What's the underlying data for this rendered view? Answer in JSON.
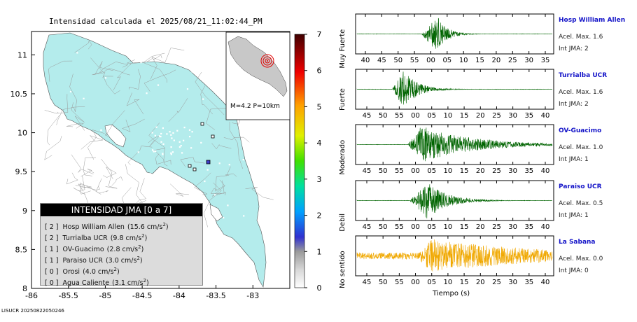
{
  "title": "Intensidad calculada el 2025/08/21_11:02:44_PM",
  "footer": "LISUCR 20250822050246",
  "map": {
    "x_ticks": [
      "-86",
      "-85.5",
      "-85",
      "-84.5",
      "-84",
      "-83.5",
      "-83"
    ],
    "y_ticks": [
      "11",
      "10.5",
      "10",
      "9.5",
      "9",
      "8.5",
      "8"
    ],
    "xlim": [
      -86,
      -82.5
    ],
    "ylim": [
      8,
      11.3
    ],
    "land_color": "#b4ecec",
    "inset_label": "M=4.2 P=10km"
  },
  "legend": {
    "title": "INTENSIDAD JMA [0 a 7]",
    "rows": [
      {
        "jma": "[ 2 ]",
        "name": "Hosp William Allen",
        "value": "(15.6 cm/s",
        "sup": "2",
        "close": ")"
      },
      {
        "jma": "[ 2 ]",
        "name": "Turrialba UCR",
        "value": "(9.8 cm/s",
        "sup": "2",
        "close": ")"
      },
      {
        "jma": "[ 1 ]",
        "name": "OV-Guacimo",
        "value": "(2.8 cm/s",
        "sup": "2",
        "close": ")"
      },
      {
        "jma": "[ 1 ]",
        "name": "Paraiso UCR",
        "value": "(3.0 cm/s",
        "sup": "2",
        "close": ")"
      },
      {
        "jma": "[ 0 ]",
        "name": "Orosi",
        "value": "(4.0 cm/s",
        "sup": "2",
        "close": ")"
      },
      {
        "jma": "[ 0 ]",
        "name": "Agua Caliente",
        "value": "(3.1 cm/s",
        "sup": "2",
        "close": ")"
      }
    ]
  },
  "colorbar": {
    "ticks": [
      "7",
      "6",
      "5",
      "4",
      "3",
      "2",
      "1",
      "0"
    ],
    "categories": [
      "Muy Fuerte",
      "Fuerte",
      "Moderado",
      "Debil",
      "No sentido"
    ]
  },
  "stations": [
    {
      "name": "Hosp William Allen",
      "acel": "Acel. Max. 1.6",
      "jma": "Int JMA: 2",
      "ticks": [
        "40",
        "45",
        "50",
        "55",
        "00",
        "05",
        "10",
        "15",
        "20",
        "25",
        "30",
        "35"
      ],
      "color": "#006400",
      "event_start": 0.33,
      "peak": 0.41,
      "amp": 1.0,
      "decay": 0.05,
      "noise": 0.01
    },
    {
      "name": "Turrialba UCR",
      "acel": "Acel. Max. 1.6",
      "jma": "Int JMA: 2",
      "ticks": [
        "45",
        "50",
        "55",
        "00",
        "05",
        "10",
        "15",
        "20",
        "25",
        "30",
        "35",
        "40"
      ],
      "color": "#006400",
      "event_start": 0.18,
      "peak": 0.24,
      "amp": 1.0,
      "decay": 0.07,
      "noise": 0.01
    },
    {
      "name": "OV-Guacimo",
      "acel": "Acel. Max. 1.0",
      "jma": "Int JMA: 1",
      "ticks": [
        "45",
        "50",
        "55",
        "00",
        "05",
        "10",
        "15",
        "20",
        "25",
        "30",
        "35",
        "40"
      ],
      "color": "#006400",
      "event_start": 0.26,
      "peak": 0.33,
      "amp": 1.0,
      "decay": 0.25,
      "noise": 0.01
    },
    {
      "name": "Paraiso UCR",
      "acel": "Acel. Max. 0.5",
      "jma": "Int JMA: 1",
      "ticks": [
        "45",
        "50",
        "55",
        "00",
        "05",
        "10",
        "15",
        "20",
        "25",
        "30",
        "35",
        "40"
      ],
      "color": "#006400",
      "event_start": 0.27,
      "peak": 0.36,
      "amp": 1.0,
      "decay": 0.1,
      "noise": 0.01
    },
    {
      "name": "La Sabana",
      "acel": "Acel. Max. 0.0",
      "jma": "Int JMA: 0",
      "ticks": [
        "45",
        "50",
        "55",
        "00",
        "05",
        "10",
        "15",
        "20",
        "25",
        "30",
        "35",
        "40"
      ],
      "color": "#f0a800",
      "event_start": 0.3,
      "peak": 0.38,
      "amp": 0.9,
      "decay": 0.6,
      "noise": 0.18
    }
  ],
  "xlabel": "Tiempo (s)"
}
